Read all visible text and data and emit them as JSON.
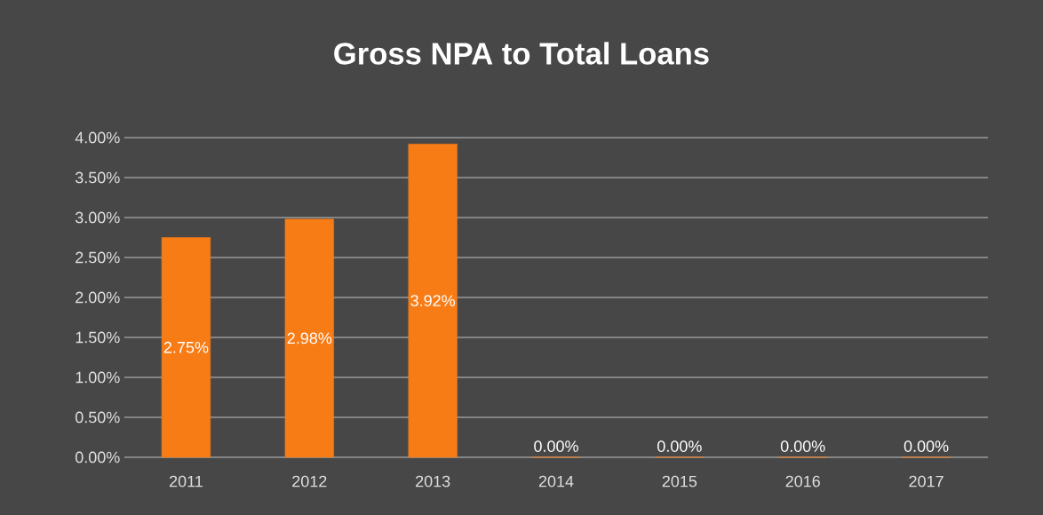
{
  "chart_data": {
    "type": "bar",
    "title": "Gross NPA to Total Loans",
    "categories": [
      "2011",
      "2012",
      "2013",
      "2014",
      "2015",
      "2016",
      "2017"
    ],
    "values": [
      2.75,
      2.98,
      3.92,
      0,
      0,
      0,
      0
    ],
    "value_labels": [
      "2.75%",
      "2.98%",
      "3.92%",
      "0.00%",
      "0.00%",
      "0.00%",
      "0.00%"
    ],
    "color": "#f77c16",
    "ylim": [
      0,
      4
    ],
    "yticks": [
      {
        "value": 0,
        "label": "0.00%"
      },
      {
        "value": 0.5,
        "label": "0.50%"
      },
      {
        "value": 1,
        "label": "1.00%"
      },
      {
        "value": 1.5,
        "label": "1.50%"
      },
      {
        "value": 2,
        "label": "2.00%"
      },
      {
        "value": 2.5,
        "label": "2.50%"
      },
      {
        "value": 3,
        "label": "3.00%"
      },
      {
        "value": 3.5,
        "label": "3.50%"
      },
      {
        "value": 4,
        "label": "4.00%"
      }
    ],
    "grid": "y"
  }
}
